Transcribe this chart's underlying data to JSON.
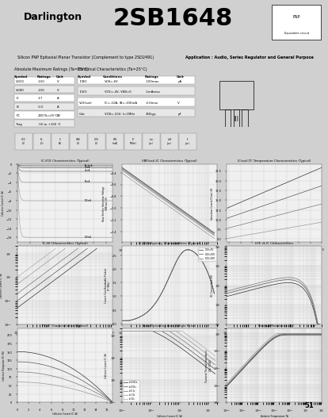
{
  "title": "2SB1648",
  "subtitle": "Darlington",
  "description": "Silicon PNP Epitaxial Planar Transistor (Complement to type 2SD2491)",
  "application": "Application : Audio, Series Regulator and General Purpose",
  "bg_color": "#d0d0d0",
  "header_bg": "#c8c8c8",
  "table_bg": "#e8e8e8",
  "abs_max_title": "Absolute Maximum Ratings (Ta=25°C)",
  "elec_char_title": "Electrical Characteristics (Ta=25°C)",
  "abs_max_rows": [
    [
      "VCEO",
      "-150",
      "V"
    ],
    [
      "VCBO",
      "-150",
      "V"
    ],
    [
      "IC",
      "-17",
      "A"
    ],
    [
      "IB",
      "-0.5",
      "A"
    ],
    [
      "PC",
      "200(Tc=25°C)",
      "W"
    ],
    [
      "Tstg",
      "-55 to +150",
      "°C"
    ]
  ],
  "elec_char_rows": [
    [
      "ICBO",
      "VCB=-6V",
      "-100max",
      "μA"
    ],
    [
      "ICEO",
      "VCE=-4V, VEB=0",
      "-1mAmax",
      ""
    ],
    [
      "VCE(sat)",
      "IC=-10A, IB=-100mA",
      "-3.0max",
      "V"
    ],
    [
      "Cob",
      "VCB=-10V, f=1MHz",
      "350typ",
      "pF"
    ]
  ],
  "page_num": "51",
  "graph_bg": "#f0f0f0",
  "grid_color": "#cccccc",
  "line_colors": [
    "#333333",
    "#555555",
    "#777777",
    "#999999",
    "#aaaaaa"
  ]
}
